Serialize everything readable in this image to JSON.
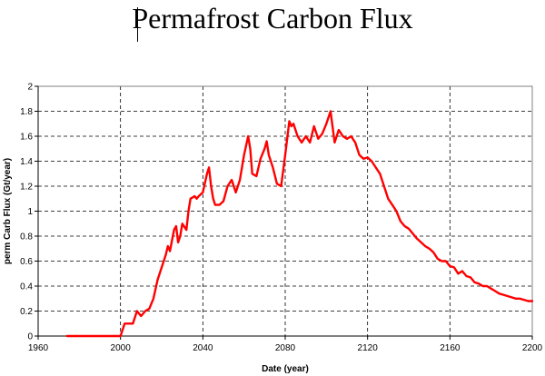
{
  "chart_data": {
    "type": "line",
    "title": "Permafrost Carbon Flux",
    "xlabel": "Date (year)",
    "ylabel": "perm Carb Flux (Gt/year)",
    "xlim": [
      1960,
      2200
    ],
    "ylim": [
      0,
      2
    ],
    "xticks": [
      1960,
      2000,
      2040,
      2080,
      2120,
      2160,
      2200
    ],
    "yticks": [
      0,
      0.2,
      0.4,
      0.6,
      0.8,
      1,
      1.2,
      1.4,
      1.6,
      1.8,
      2
    ],
    "grid": true,
    "legend": "none",
    "series": [
      {
        "color": "#ff0000",
        "x": [
          1974,
          2000,
          2002,
          2004,
          2006,
          2008,
          2010,
          2012,
          2014,
          2016,
          2018,
          2020,
          2022,
          2023,
          2024,
          2026,
          2027,
          2028,
          2029,
          2030,
          2032,
          2033,
          2034,
          2036,
          2037,
          2038,
          2040,
          2042,
          2043,
          2044,
          2045,
          2046,
          2048,
          2050,
          2052,
          2054,
          2056,
          2058,
          2060,
          2062,
          2063,
          2064,
          2066,
          2068,
          2070,
          2071,
          2072,
          2074,
          2076,
          2078,
          2080,
          2082,
          2083,
          2084,
          2086,
          2088,
          2090,
          2092,
          2094,
          2096,
          2098,
          2100,
          2102,
          2104,
          2106,
          2108,
          2110,
          2112,
          2114,
          2116,
          2118,
          2120,
          2122,
          2124,
          2126,
          2128,
          2130,
          2132,
          2134,
          2136,
          2138,
          2140,
          2142,
          2144,
          2146,
          2148,
          2150,
          2152,
          2154,
          2156,
          2158,
          2160,
          2162,
          2164,
          2166,
          2168,
          2170,
          2172,
          2174,
          2176,
          2178,
          2180,
          2182,
          2184,
          2186,
          2188,
          2190,
          2192,
          2194,
          2196,
          2198,
          2200
        ],
        "y": [
          0,
          0,
          0.1,
          0.1,
          0.1,
          0.2,
          0.16,
          0.2,
          0.22,
          0.3,
          0.45,
          0.55,
          0.65,
          0.72,
          0.68,
          0.85,
          0.88,
          0.75,
          0.8,
          0.9,
          0.85,
          1.0,
          1.1,
          1.12,
          1.1,
          1.12,
          1.15,
          1.3,
          1.35,
          1.2,
          1.1,
          1.05,
          1.05,
          1.08,
          1.2,
          1.25,
          1.15,
          1.25,
          1.45,
          1.6,
          1.5,
          1.3,
          1.28,
          1.42,
          1.5,
          1.56,
          1.45,
          1.35,
          1.22,
          1.2,
          1.45,
          1.72,
          1.68,
          1.7,
          1.6,
          1.55,
          1.6,
          1.55,
          1.68,
          1.58,
          1.62,
          1.7,
          1.8,
          1.55,
          1.65,
          1.6,
          1.58,
          1.6,
          1.55,
          1.45,
          1.42,
          1.43,
          1.4,
          1.35,
          1.3,
          1.2,
          1.1,
          1.05,
          1.0,
          0.92,
          0.88,
          0.86,
          0.82,
          0.78,
          0.75,
          0.72,
          0.7,
          0.67,
          0.62,
          0.6,
          0.6,
          0.56,
          0.55,
          0.5,
          0.52,
          0.48,
          0.47,
          0.43,
          0.42,
          0.4,
          0.4,
          0.38,
          0.36,
          0.34,
          0.33,
          0.32,
          0.31,
          0.3,
          0.3,
          0.29,
          0.28,
          0.28
        ]
      }
    ]
  }
}
